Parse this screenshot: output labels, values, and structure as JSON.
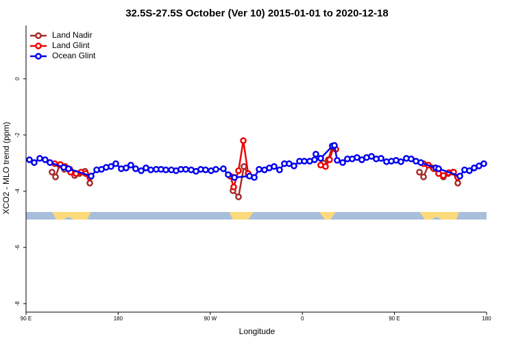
{
  "chart_data": {
    "type": "line",
    "title": "32.5S-27.5S October (Ver 10)   2015-01-01 to 2020-12-18",
    "x_label": "Longitude",
    "y_label": "XCO2 - MLO trend (ppm)",
    "xlim": [
      90,
      540
    ],
    "ylim": [
      -8.3,
      1.9
    ],
    "xticks": [
      {
        "value": 90,
        "label": "90 E"
      },
      180,
      {
        "value": 270,
        "label": "90 W"
      },
      {
        "value": 360,
        "label": "0"
      },
      {
        "value": 450,
        "label": "90 E"
      },
      {
        "value": 540,
        "label": "180"
      }
    ],
    "yticks": [
      0,
      -2,
      -4,
      -6,
      -8
    ],
    "legend": "top-left",
    "series": [
      {
        "name": "Land Nadir",
        "color": "#a52a2a",
        "x": [
          115.4,
          118.8,
          122.8,
          127.5,
          132.9,
          137.5,
          142.2,
          147.6,
          152.3,
          null,
          292.2,
          297.6,
          302.9,
          307.6,
          null,
          380.6,
          385.3,
          389.3,
          null,
          474.4,
          478.4,
          483.1,
          487.7,
          493.1,
          497.8,
          502.5,
          507.2,
          511.9
        ],
        "values": [
          -3.32,
          -3.49,
          -3.07,
          -3.22,
          -3.22,
          -3.44,
          -3.37,
          -3.29,
          -3.71,
          null,
          -3.98,
          -4.2,
          -3.12,
          -3.44,
          null,
          -3.0,
          -2.88,
          -2.39,
          null,
          -3.32,
          -3.49,
          -3.07,
          -3.17,
          -3.22,
          -3.49,
          -3.37,
          -3.32,
          -3.71
        ]
      },
      {
        "name": "Land Glint",
        "color": "#ee0000",
        "x": [
          118.1,
          123.5,
          128.2,
          133.5,
          138.9,
          143.6,
          148.3,
          152.3,
          null,
          289.5,
          292.9,
          297.6,
          302.3,
          307.0,
          null,
          377.9,
          382.6,
          386.6,
          390.7,
          392.7,
          null,
          478.4,
          483.1,
          488.4,
          493.1,
          497.8,
          503.1,
          507.8,
          511.9
        ],
        "values": [
          -3.02,
          -3.05,
          -3.12,
          -3.32,
          -3.37,
          -3.32,
          -3.37,
          -3.51,
          null,
          -3.46,
          -3.85,
          -3.27,
          -2.2,
          -3.37,
          null,
          -3.07,
          -3.12,
          -2.88,
          -2.39,
          -2.51,
          null,
          -3.02,
          -3.07,
          -3.2,
          -3.37,
          -3.44,
          -3.34,
          -3.32,
          -3.51
        ]
      },
      {
        "name": "Ocean Glint",
        "color": "#0000ee",
        "x": [
          93.3,
          98.0,
          103.4,
          108.7,
          113.4,
          126.8,
          131.5,
          153.6,
          159.0,
          163.7,
          168.3,
          173.0,
          177.7,
          183.0,
          187.8,
          192.4,
          197.1,
          202.5,
          207.2,
          211.9,
          217.2,
          221.9,
          226.6,
          232.0,
          236.6,
          241.3,
          246.0,
          251.4,
          256.1,
          260.7,
          265.4,
          270.8,
          275.5,
          282.8,
          287.5,
          293.6,
          308.3,
          313.0,
          317.7,
          323.0,
          327.7,
          332.4,
          337.7,
          342.4,
          347.1,
          351.8,
          357.2,
          361.9,
          367.2,
          371.9,
          373.2,
          377.9,
          389.3,
          391.3,
          394.0,
          399.4,
          404.0,
          408.7,
          413.4,
          418.1,
          422.8,
          427.5,
          432.2,
          436.9,
          442.2,
          446.9,
          451.6,
          456.3,
          461.6,
          466.3,
          471.0,
          475.7,
          490.4,
          493.1,
          513.9,
          518.5,
          523.2,
          527.9,
          532.6,
          537.3
        ],
        "values": [
          -2.88,
          -2.98,
          -2.83,
          -2.88,
          -2.98,
          -3.15,
          -3.2,
          -3.46,
          -3.24,
          -3.22,
          -3.15,
          -3.12,
          -3.02,
          -3.2,
          -3.17,
          -3.07,
          -3.2,
          -3.27,
          -3.17,
          -3.24,
          -3.22,
          -3.22,
          -3.24,
          -3.24,
          -3.27,
          -3.22,
          -3.22,
          -3.24,
          -3.29,
          -3.22,
          -3.24,
          -3.27,
          -3.22,
          -3.2,
          -3.41,
          -3.51,
          -3.46,
          -3.51,
          -3.22,
          -3.24,
          -3.17,
          -3.12,
          -3.24,
          -3.02,
          -3.02,
          -3.1,
          -2.93,
          -2.93,
          -2.93,
          -2.88,
          -2.68,
          -2.83,
          -2.39,
          -2.37,
          -2.9,
          -2.98,
          -2.85,
          -2.85,
          -2.8,
          -2.88,
          -2.8,
          -2.76,
          -2.85,
          -2.83,
          -2.95,
          -2.93,
          -2.9,
          -2.95,
          -2.83,
          -2.85,
          -2.93,
          -2.98,
          -3.17,
          -3.2,
          -3.46,
          -3.24,
          -3.27,
          -3.17,
          -3.1,
          -3.02
        ]
      }
    ]
  }
}
